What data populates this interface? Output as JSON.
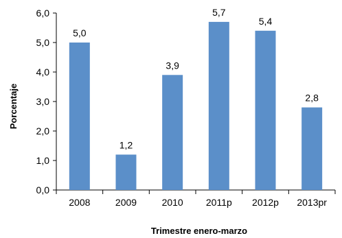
{
  "chart_data": {
    "type": "bar",
    "categories": [
      "2008",
      "2009",
      "2010",
      "2011p",
      "2012p",
      "2013pr"
    ],
    "values": [
      5.0,
      1.2,
      3.9,
      5.7,
      5.4,
      2.8
    ],
    "value_labels": [
      "5,0",
      "1,2",
      "3,9",
      "5,7",
      "5,4",
      "2,8"
    ],
    "xlabel": "Trimestre enero-marzo",
    "ylabel": "Porcentaje",
    "ylim": [
      0,
      6
    ],
    "yticks": [
      0,
      1,
      2,
      3,
      4,
      5,
      6
    ],
    "ytick_labels": [
      "0,0",
      "1,0",
      "2,0",
      "3,0",
      "4,0",
      "5,0",
      "6,0"
    ],
    "grid": false,
    "bar_color": "#5b8fc9"
  }
}
